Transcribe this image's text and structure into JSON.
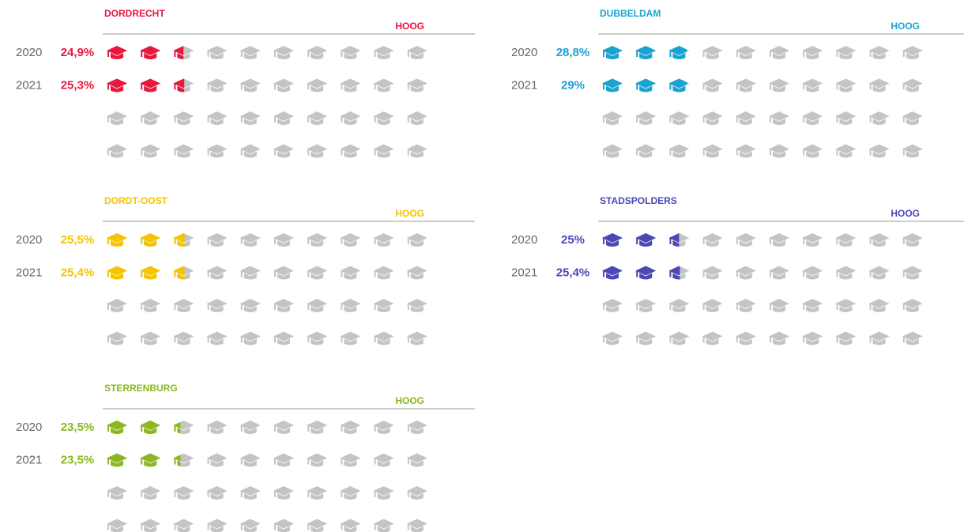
{
  "chart_data": [
    {
      "type": "pictogram",
      "title": "DORDRECHT",
      "annotation": "HOOG",
      "color": "#e8173c",
      "categories": [
        "2020",
        "2021"
      ],
      "values": [
        24.9,
        25.3
      ],
      "value_labels": [
        "24,9%",
        "25,3%"
      ]
    },
    {
      "type": "pictogram",
      "title": "DUBBELDAM",
      "annotation": "HOOG",
      "color": "#1aa3d1",
      "categories": [
        "2020",
        "2021"
      ],
      "values": [
        28.8,
        29
      ],
      "value_labels": [
        "28,8%",
        "29%"
      ]
    },
    {
      "type": "pictogram",
      "title": "DORDT-OOST",
      "annotation": "HOOG",
      "color": "#f5c400",
      "categories": [
        "2020",
        "2021"
      ],
      "values": [
        25.5,
        25.4
      ],
      "value_labels": [
        "25,5%",
        "25,4%"
      ]
    },
    {
      "type": "pictogram",
      "title": "STADSPOLDERS",
      "annotation": "HOOG",
      "color": "#4b48b5",
      "categories": [
        "2020",
        "2021"
      ],
      "values": [
        25,
        25.4
      ],
      "value_labels": [
        "25%",
        "25,4%"
      ]
    },
    {
      "type": "pictogram",
      "title": "STERRENBURG",
      "annotation": "HOOG",
      "color": "#8bb81e",
      "categories": [
        "2020",
        "2021"
      ],
      "values": [
        23.5,
        23.5
      ],
      "value_labels": [
        "23,5%",
        "23,5%"
      ]
    }
  ]
}
